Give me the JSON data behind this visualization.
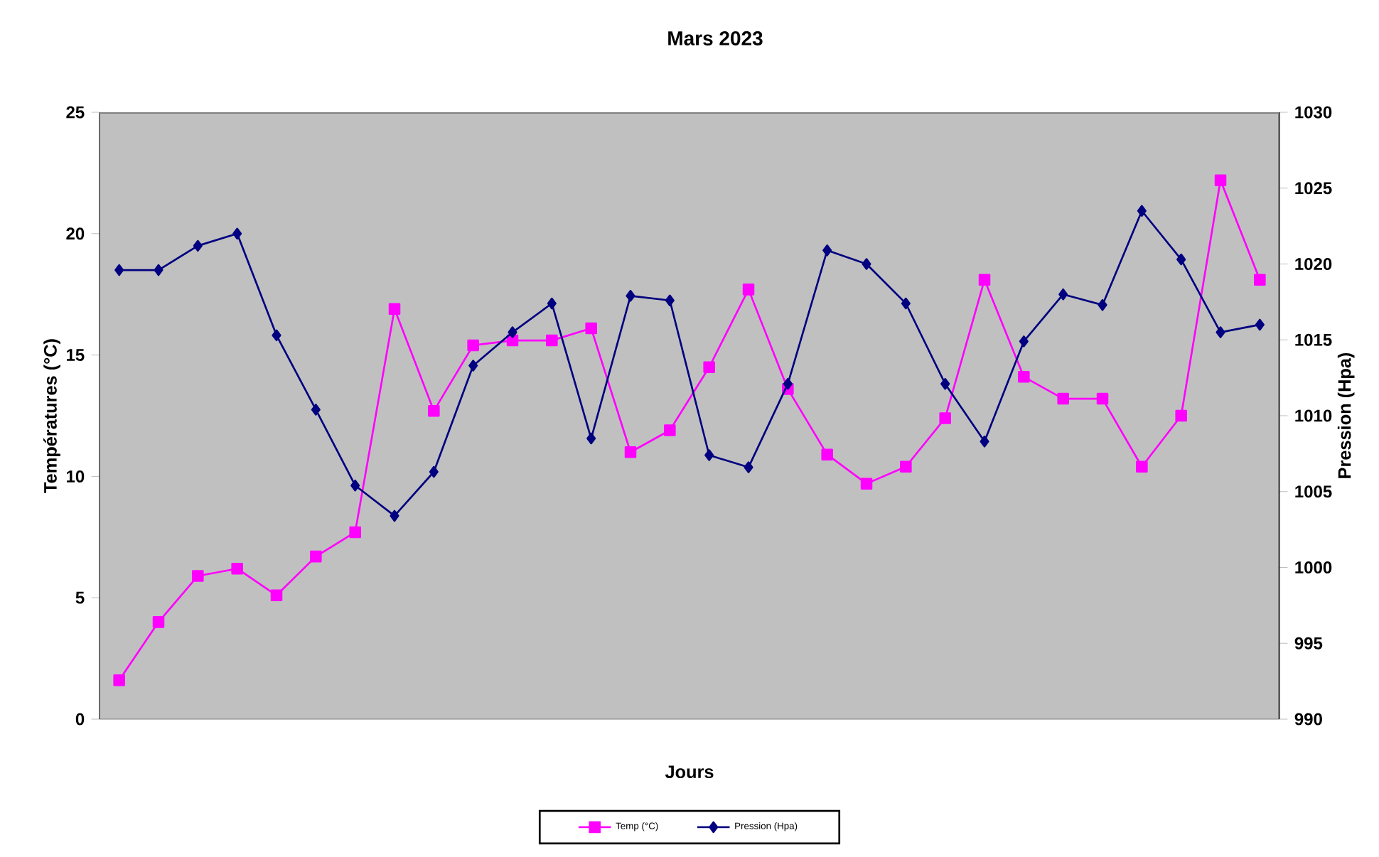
{
  "chart_data": {
    "type": "line",
    "title": "Mars 2023",
    "xlabel": "Jours",
    "ylabel": "Températures (°C)",
    "y2label": "Pression (Hpa)",
    "categories": [
      null,
      null,
      null,
      null,
      null,
      null,
      null,
      null,
      null,
      null,
      null,
      null,
      null,
      null,
      null,
      null,
      null,
      null,
      null,
      null,
      null,
      null,
      null,
      null,
      null,
      null,
      null,
      null,
      null,
      null
    ],
    "series": [
      {
        "name": "Temp (°C)",
        "color": "#ff00ff",
        "marker": "square",
        "values": [
          1.6,
          4.0,
          5.9,
          6.2,
          5.1,
          6.7,
          7.7,
          16.9,
          12.7,
          15.4,
          15.6,
          15.6,
          16.1,
          11.0,
          11.9,
          14.5,
          17.7,
          13.6,
          10.9,
          9.7,
          10.4,
          12.4,
          18.1,
          14.1,
          13.2,
          13.2,
          10.4,
          12.5,
          22.2,
          18.1
        ]
      },
      {
        "name": "Pression (Hpa)",
        "color": "#000080",
        "marker": "diamond",
        "axis": "y2",
        "values": [
          1019.6,
          1019.6,
          1021.2,
          1022.0,
          1015.3,
          1010.4,
          1005.4,
          1003.4,
          1006.3,
          1013.3,
          1015.5,
          1017.4,
          1008.5,
          1017.9,
          1017.6,
          1007.4,
          1006.6,
          1012.1,
          1020.9,
          1020.0,
          1017.4,
          1012.1,
          1008.3,
          1014.9,
          1018.0,
          1017.3,
          1023.5,
          1020.3,
          1015.5,
          1016.0
        ]
      }
    ],
    "ylim": [
      0,
      25
    ],
    "yticks": [
      0,
      5,
      10,
      15,
      20,
      25
    ],
    "y2lim": [
      990,
      1030
    ],
    "y2ticks": [
      990,
      995,
      1000,
      1005,
      1010,
      1015,
      1020,
      1025,
      1030
    ],
    "legend": "bottom"
  }
}
